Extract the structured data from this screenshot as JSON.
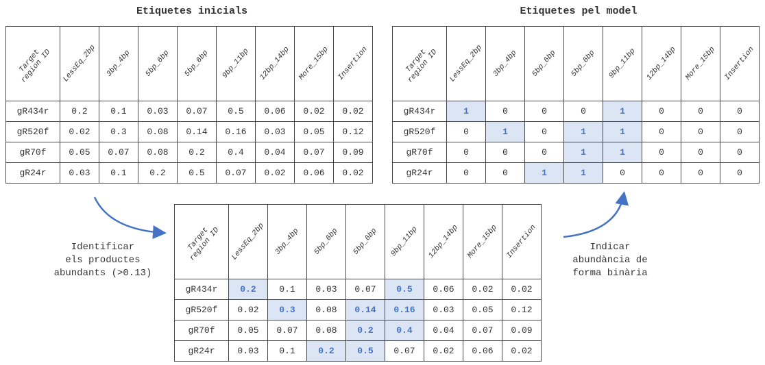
{
  "left": {
    "title": "Etiquetes inicials",
    "headers": [
      "Target region ID",
      "LessEq_2bp",
      "3bp_4bp",
      "5bp_6bp",
      "5bp_6bp",
      "9bp_11bp",
      "12bp_14bp",
      "More_15bp",
      "Insertion"
    ],
    "rows": [
      [
        "gR434r",
        "0.2",
        "0.1",
        "0.03",
        "0.07",
        "0.5",
        "0.06",
        "0.02",
        "0.02"
      ],
      [
        "gR520f",
        "0.02",
        "0.3",
        "0.08",
        "0.14",
        "0.16",
        "0.03",
        "0.05",
        "0.12"
      ],
      [
        "gR70f",
        "0.05",
        "0.07",
        "0.08",
        "0.2",
        "0.4",
        "0.04",
        "0.07",
        "0.09"
      ],
      [
        "gR24r",
        "0.03",
        "0.1",
        "0.2",
        "0.5",
        "0.07",
        "0.02",
        "0.06",
        "0.02"
      ]
    ]
  },
  "right": {
    "title": "Etiquetes pel model",
    "headers": [
      "Target region ID",
      "LessEq_2bp",
      "3bp_4bp",
      "5bp_6bp",
      "5bp_6bp",
      "9bp_11bp",
      "12bp_14bp",
      "More_15bp",
      "Insertion"
    ],
    "rows": [
      [
        "gR434r",
        "1",
        "0",
        "0",
        "0",
        "1",
        "0",
        "0",
        "0"
      ],
      [
        "gR520f",
        "0",
        "1",
        "0",
        "1",
        "1",
        "0",
        "0",
        "0"
      ],
      [
        "gR70f",
        "0",
        "0",
        "0",
        "1",
        "1",
        "0",
        "0",
        "0"
      ],
      [
        "gR24r",
        "0",
        "0",
        "1",
        "1",
        "0",
        "0",
        "0",
        "0"
      ]
    ],
    "highlight": [
      [
        0,
        1
      ],
      [
        0,
        5
      ],
      [
        1,
        2
      ],
      [
        1,
        4
      ],
      [
        1,
        5
      ],
      [
        2,
        4
      ],
      [
        2,
        5
      ],
      [
        3,
        3
      ],
      [
        3,
        4
      ]
    ]
  },
  "bottom": {
    "headers": [
      "Target region ID",
      "LessEq_2bp",
      "3bp_4bp",
      "5bp_6bp",
      "5bp_6bp",
      "9bp_11bp",
      "12bp_14bp",
      "More_15bp",
      "Insertion"
    ],
    "rows": [
      [
        "gR434r",
        "0.2",
        "0.1",
        "0.03",
        "0.07",
        "0.5",
        "0.06",
        "0.02",
        "0.02"
      ],
      [
        "gR520f",
        "0.02",
        "0.3",
        "0.08",
        "0.14",
        "0.16",
        "0.03",
        "0.05",
        "0.12"
      ],
      [
        "gR70f",
        "0.05",
        "0.07",
        "0.08",
        "0.2",
        "0.4",
        "0.04",
        "0.07",
        "0.09"
      ],
      [
        "gR24r",
        "0.03",
        "0.1",
        "0.2",
        "0.5",
        "0.07",
        "0.02",
        "0.06",
        "0.02"
      ]
    ],
    "highlight": [
      [
        0,
        1
      ],
      [
        0,
        5
      ],
      [
        1,
        2
      ],
      [
        1,
        4
      ],
      [
        1,
        5
      ],
      [
        2,
        4
      ],
      [
        2,
        5
      ],
      [
        3,
        3
      ],
      [
        3,
        4
      ]
    ]
  },
  "notes": {
    "abundant": [
      "Identificar",
      "els productes",
      "abundants (>0.13)"
    ],
    "binary": [
      "Indicar",
      "abundància de",
      "forma binària"
    ]
  }
}
